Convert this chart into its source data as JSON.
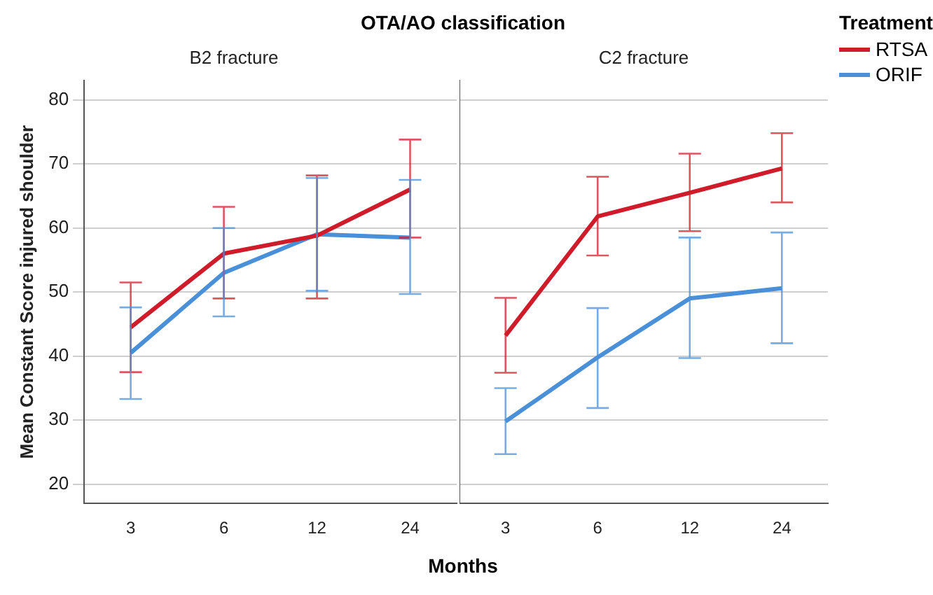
{
  "chart_data": [
    {
      "type": "line",
      "title": "OTA/AO classification",
      "subtitle": "B2 fracture",
      "xlabel": "Months",
      "ylabel": "Mean Constant Score injured shoulder",
      "categories": [
        "3",
        "6",
        "12",
        "24"
      ],
      "ylim": [
        17,
        83
      ],
      "yticks": [
        20,
        30,
        40,
        50,
        60,
        70,
        80
      ],
      "grid": "y",
      "marker": "none",
      "line_style": "solid",
      "series": [
        {
          "color": "#d01c2a",
          "values": [
            44.5,
            56,
            58.8,
            66
          ],
          "errors": [
            [
              37.5,
              51.5
            ],
            [
              49,
              63.3
            ],
            [
              49,
              68.2
            ],
            [
              58.5,
              73.8
            ]
          ]
        },
        {
          "color": "#4a90d9",
          "values": [
            40.5,
            53,
            59,
            58.5
          ],
          "errors": [
            [
              33.3,
              47.6
            ],
            [
              46.2,
              60
            ],
            [
              50.2,
              67.8
            ],
            [
              49.7,
              67.5
            ]
          ]
        }
      ]
    },
    {
      "type": "line",
      "subtitle": "C2 fracture",
      "categories": [
        "3",
        "6",
        "12",
        "24"
      ],
      "ylim": [
        17,
        83
      ],
      "yticks": [
        20,
        30,
        40,
        50,
        60,
        70,
        80
      ],
      "grid": "y",
      "marker": "none",
      "line_style": "solid",
      "tick_labels": "x",
      "legend": "right",
      "legend_title": "Treatment",
      "series": [
        {
          "name": "RTSA",
          "color": "#d01c2a",
          "values": [
            43.2,
            61.8,
            65.5,
            69.3
          ],
          "errors": [
            [
              37.4,
              49.1
            ],
            [
              55.7,
              68
            ],
            [
              59.5,
              71.6
            ],
            [
              64,
              74.8
            ]
          ]
        },
        {
          "name": "ORIF",
          "color": "#4a90d9",
          "values": [
            29.8,
            39.8,
            49,
            50.6
          ],
          "errors": [
            [
              24.7,
              35
            ],
            [
              31.9,
              47.5
            ],
            [
              39.7,
              58.5
            ],
            [
              42,
              59.3
            ]
          ]
        }
      ]
    }
  ]
}
